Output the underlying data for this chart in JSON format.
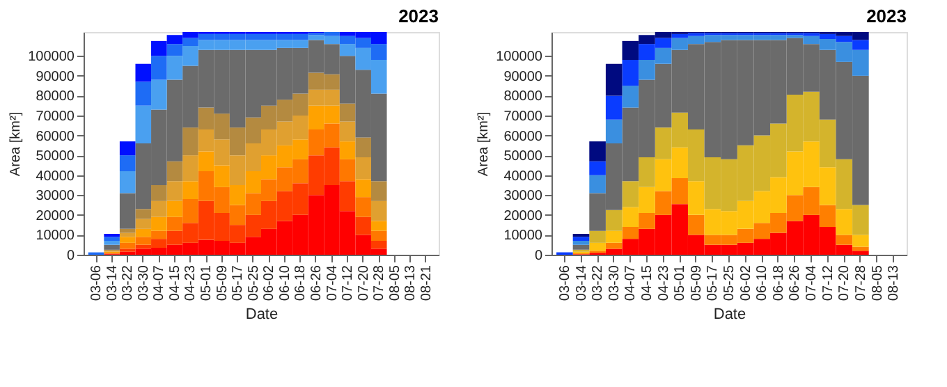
{
  "chart_data": [
    {
      "type": "bar",
      "title": "2023",
      "xlabel": "Date",
      "ylabel": "Area [km²]",
      "stacked": true,
      "grid": false,
      "legend": false,
      "categories": [
        "03-06",
        "03-14",
        "03-22",
        "03-30",
        "04-07",
        "04-15",
        "04-23",
        "05-01",
        "05-09",
        "05-17",
        "05-25",
        "06-02",
        "06-10",
        "06-18",
        "06-26",
        "07-04",
        "07-12",
        "07-20",
        "07-28",
        "08-05",
        "08-13",
        "08-21"
      ],
      "ylim": [
        0,
        112000
      ],
      "yticks": [
        0,
        10000,
        20000,
        30000,
        40000,
        50000,
        60000,
        70000,
        80000,
        90000,
        100000
      ],
      "series": [
        {
          "color": "#ff0000",
          "values": [
            0,
            300,
            1500,
            3000,
            3500,
            5000,
            6000,
            7500,
            7000,
            6000,
            9000,
            13000,
            17000,
            20000,
            30000,
            35000,
            22000,
            10000,
            3000,
            null,
            null,
            null
          ]
        },
        {
          "color": "#ff3c00",
          "values": [
            0,
            300,
            1500,
            2000,
            4500,
            7000,
            10000,
            19500,
            14000,
            9000,
            11000,
            14000,
            15000,
            16000,
            20000,
            19000,
            15000,
            9000,
            4000,
            null,
            null,
            null
          ]
        },
        {
          "color": "#ff7800",
          "values": [
            0,
            400,
            3000,
            4000,
            4000,
            7000,
            12000,
            15000,
            13000,
            10000,
            11000,
            11000,
            12000,
            12000,
            13000,
            12000,
            11000,
            10000,
            5000,
            null,
            null,
            null
          ]
        },
        {
          "color": "#ffa200",
          "values": [
            0,
            500,
            3000,
            4000,
            7000,
            8000,
            9000,
            10000,
            11000,
            10000,
            11000,
            12000,
            11000,
            10000,
            12000,
            9000,
            9000,
            9000,
            5000,
            null,
            null,
            null
          ]
        },
        {
          "color": "#e0a030",
          "values": [
            0,
            500,
            2000,
            5000,
            8000,
            10000,
            13000,
            11000,
            13000,
            15000,
            14000,
            13000,
            12000,
            12000,
            8000,
            8000,
            10000,
            11000,
            10000,
            null,
            null,
            null
          ]
        },
        {
          "color": "#b48a40",
          "values": [
            0,
            500,
            2000,
            5000,
            8000,
            10000,
            14000,
            11000,
            13000,
            14000,
            13000,
            12000,
            11000,
            11000,
            8500,
            7700,
            9000,
            10000,
            10000,
            null,
            null,
            null
          ]
        },
        {
          "color": "#6b6b6b",
          "values": [
            0,
            2500,
            18000,
            33000,
            38000,
            41000,
            31000,
            29000,
            32000,
            39000,
            34000,
            28000,
            26000,
            23000,
            16500,
            15300,
            24000,
            34000,
            44000,
            null,
            null,
            null
          ]
        },
        {
          "color": "#4aa0f0",
          "values": [
            0,
            2000,
            11000,
            19000,
            15000,
            12000,
            10000,
            5000,
            5000,
            5000,
            5000,
            5000,
            4000,
            4000,
            2500,
            4000,
            6000,
            11000,
            17000,
            null,
            null,
            null
          ]
        },
        {
          "color": "#1e6cf5",
          "values": [
            1200,
            2000,
            8000,
            12000,
            12000,
            6000,
            4000,
            3000,
            3000,
            3000,
            3000,
            3000,
            3000,
            3000,
            1000,
            2000,
            4000,
            5000,
            8000,
            null,
            null,
            null
          ]
        },
        {
          "color": "#0010ff",
          "values": [
            0,
            1500,
            7000,
            9000,
            7500,
            4500,
            3000,
            1000,
            1000,
            1000,
            1000,
            1000,
            1000,
            1000,
            500,
            0,
            2000,
            3000,
            6000,
            null,
            null,
            null
          ]
        }
      ]
    },
    {
      "type": "bar",
      "title": "2023",
      "xlabel": "Date",
      "ylabel": "Area [km²]",
      "stacked": true,
      "grid": false,
      "legend": false,
      "categories": [
        "03-06",
        "03-14",
        "03-22",
        "03-30",
        "04-07",
        "04-15",
        "04-23",
        "05-01",
        "05-09",
        "05-17",
        "05-25",
        "06-02",
        "06-10",
        "06-18",
        "06-26",
        "07-04",
        "07-12",
        "07-20",
        "07-28",
        "08-05",
        "08-13"
      ],
      "ylim": [
        0,
        112000
      ],
      "yticks": [
        0,
        10000,
        20000,
        30000,
        40000,
        50000,
        60000,
        70000,
        80000,
        90000,
        100000
      ],
      "series": [
        {
          "color": "#ff0000",
          "values": [
            0,
            300,
            1000,
            3000,
            8000,
            13000,
            20000,
            25500,
            10000,
            5000,
            5000,
            6000,
            8000,
            11000,
            17000,
            20000,
            14000,
            5000,
            2000,
            null,
            null
          ]
        },
        {
          "color": "#ff7f00",
          "values": [
            0,
            500,
            1000,
            3000,
            6000,
            8000,
            12000,
            13000,
            10000,
            5000,
            5000,
            7000,
            8000,
            10000,
            13000,
            14000,
            11000,
            5000,
            2000,
            null,
            null
          ]
        },
        {
          "color": "#ffc20e",
          "values": [
            0,
            700,
            4000,
            6000,
            10000,
            13000,
            16000,
            15500,
            17000,
            13000,
            12000,
            14000,
            16000,
            18000,
            22000,
            23000,
            19000,
            13000,
            6000,
            null,
            null
          ]
        },
        {
          "color": "#d4b42c",
          "values": [
            0,
            1000,
            6000,
            10500,
            13000,
            15000,
            16000,
            17500,
            26000,
            26000,
            26000,
            28000,
            28000,
            27000,
            28500,
            25000,
            24000,
            25000,
            15000,
            null,
            null
          ]
        },
        {
          "color": "#6b6b6b",
          "values": [
            0,
            2500,
            19000,
            33500,
            37000,
            39000,
            32000,
            31500,
            43000,
            58000,
            60000,
            53000,
            48000,
            42000,
            28500,
            24000,
            35000,
            49000,
            65000,
            null,
            null
          ]
        },
        {
          "color": "#3a8fe0",
          "values": [
            0,
            2000,
            9000,
            12000,
            11000,
            10000,
            8000,
            6000,
            4000,
            3500,
            2500,
            2500,
            2500,
            2500,
            1500,
            4000,
            5500,
            10000,
            13000,
            null,
            null
          ]
        },
        {
          "color": "#0a3cff",
          "values": [
            1200,
            2000,
            7000,
            12000,
            13000,
            8000,
            5000,
            2000,
            1500,
            1000,
            1000,
            1000,
            1000,
            1000,
            1000,
            1500,
            2500,
            3000,
            5000,
            null,
            null
          ]
        },
        {
          "color": "#000a80",
          "values": [
            0,
            1500,
            10000,
            16000,
            9500,
            4500,
            3000,
            1000,
            500,
            500,
            500,
            500,
            500,
            500,
            500,
            500,
            1000,
            2000,
            4000,
            null,
            null
          ]
        }
      ]
    }
  ]
}
